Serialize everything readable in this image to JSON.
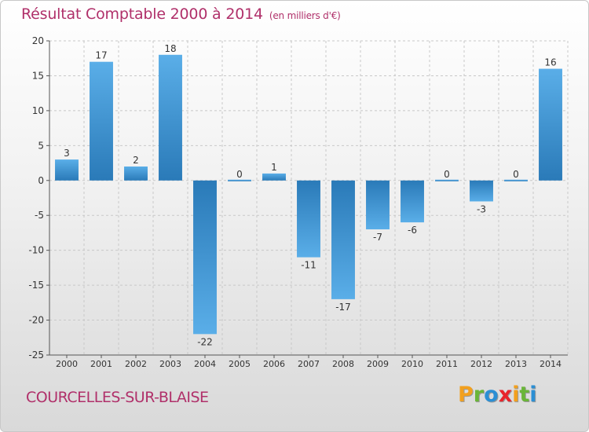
{
  "title": "Résultat Comptable 2000 à 2014",
  "unit_label": "(en milliers d'€)",
  "town": "COURCELLES-SUR-BLAISE",
  "logo": {
    "text": "Proxiti",
    "letters": [
      {
        "ch": "P",
        "color": "#f2a01e"
      },
      {
        "ch": "r",
        "color": "#6ab539"
      },
      {
        "ch": "o",
        "color": "#2b8fd4"
      },
      {
        "ch": "x",
        "color": "#e8242b"
      },
      {
        "ch": "i",
        "color": "#f2a01e"
      },
      {
        "ch": "t",
        "color": "#6ab539"
      },
      {
        "ch": "i",
        "color": "#2b8fd4"
      }
    ]
  },
  "colors": {
    "title": "#b0306a",
    "bar_light": "#5aaee8",
    "bar_dark": "#2a7ab8",
    "grid": "#c8c8c8",
    "text": "#333333"
  },
  "chart_data": {
    "type": "bar",
    "title": "Résultat Comptable 2000 à 2014",
    "xlabel": "",
    "ylabel": "",
    "categories": [
      "2000",
      "2001",
      "2002",
      "2003",
      "2004",
      "2005",
      "2006",
      "2007",
      "2008",
      "2009",
      "2010",
      "2011",
      "2012",
      "2013",
      "2014"
    ],
    "values": [
      3,
      17,
      2,
      18,
      -22,
      0,
      1,
      -11,
      -17,
      -7,
      -6,
      0,
      -3,
      0,
      16
    ],
    "ylim": [
      -25,
      20
    ],
    "yticks": [
      20,
      15,
      10,
      5,
      0,
      -5,
      -10,
      -15,
      -20,
      -25
    ],
    "grid": true
  }
}
